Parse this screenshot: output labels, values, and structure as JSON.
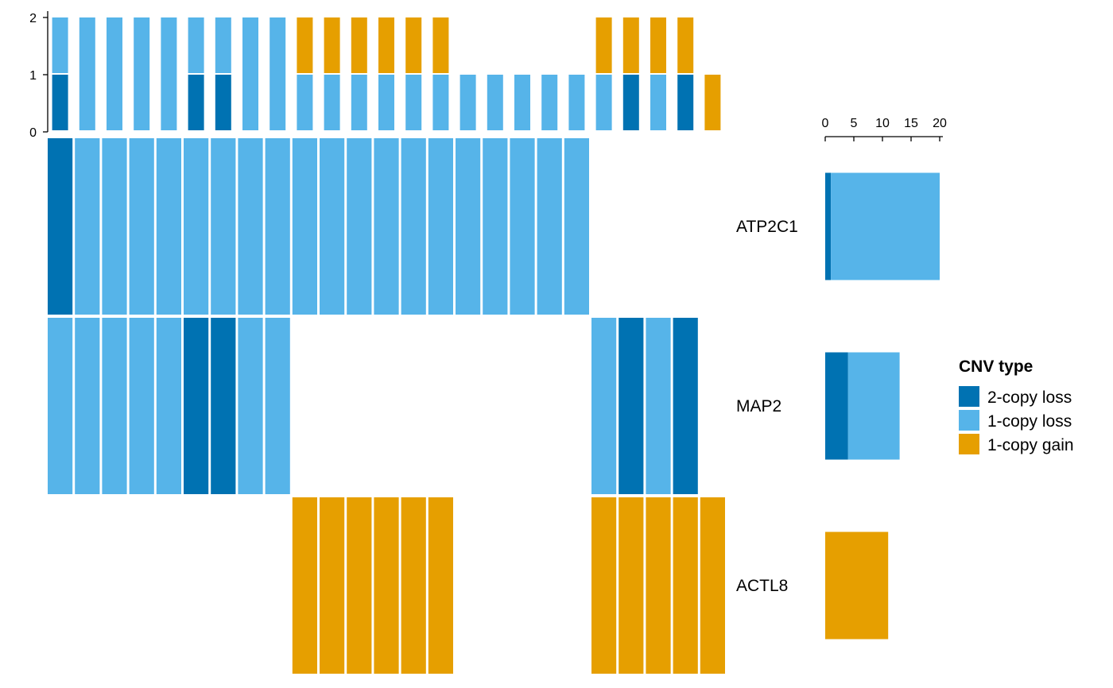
{
  "chart_data": {
    "type": "heatmap",
    "title": "",
    "genes": [
      "ATP2C1",
      "MAP2",
      "ACTL8"
    ],
    "categories": [
      "2-copy loss",
      "1-copy loss",
      "1-copy gain"
    ],
    "colors": {
      "2-copy loss": "#0072B2",
      "1-copy loss": "#56B4E9",
      "1-copy gain": "#E69F00"
    },
    "legend": {
      "title": "CNV type",
      "placement": "right",
      "entries": [
        "2-copy loss",
        "1-copy loss",
        "1-copy gain"
      ]
    },
    "matrix": {
      "ATP2C1": [
        "2-copy loss",
        "1-copy loss",
        "1-copy loss",
        "1-copy loss",
        "1-copy loss",
        "1-copy loss",
        "1-copy loss",
        "1-copy loss",
        "1-copy loss",
        "1-copy loss",
        "1-copy loss",
        "1-copy loss",
        "1-copy loss",
        "1-copy loss",
        "1-copy loss",
        "1-copy loss",
        "1-copy loss",
        "1-copy loss",
        "1-copy loss",
        "1-copy loss",
        null,
        null,
        null,
        null,
        null,
        null
      ],
      "MAP2": [
        "1-copy loss",
        "1-copy loss",
        "1-copy loss",
        "1-copy loss",
        "1-copy loss",
        "2-copy loss",
        "2-copy loss",
        "1-copy loss",
        "1-copy loss",
        null,
        null,
        null,
        null,
        null,
        null,
        null,
        null,
        null,
        null,
        null,
        "1-copy loss",
        "2-copy loss",
        "1-copy loss",
        "2-copy loss",
        null,
        null
      ],
      "ACTL8": [
        null,
        null,
        null,
        null,
        null,
        null,
        null,
        null,
        null,
        "1-copy gain",
        "1-copy gain",
        "1-copy gain",
        "1-copy gain",
        "1-copy gain",
        "1-copy gain",
        null,
        null,
        null,
        null,
        null,
        "1-copy gain",
        "1-copy gain",
        "1-copy gain",
        "1-copy gain",
        "1-copy gain",
        null
      ]
    },
    "top_barplot": {
      "ylim": [
        0,
        2
      ],
      "yticks": [
        0,
        1,
        2
      ]
    },
    "right_barplot": {
      "xlim": [
        0,
        20
      ],
      "xticks": [
        0,
        5,
        10,
        15,
        20
      ]
    }
  }
}
